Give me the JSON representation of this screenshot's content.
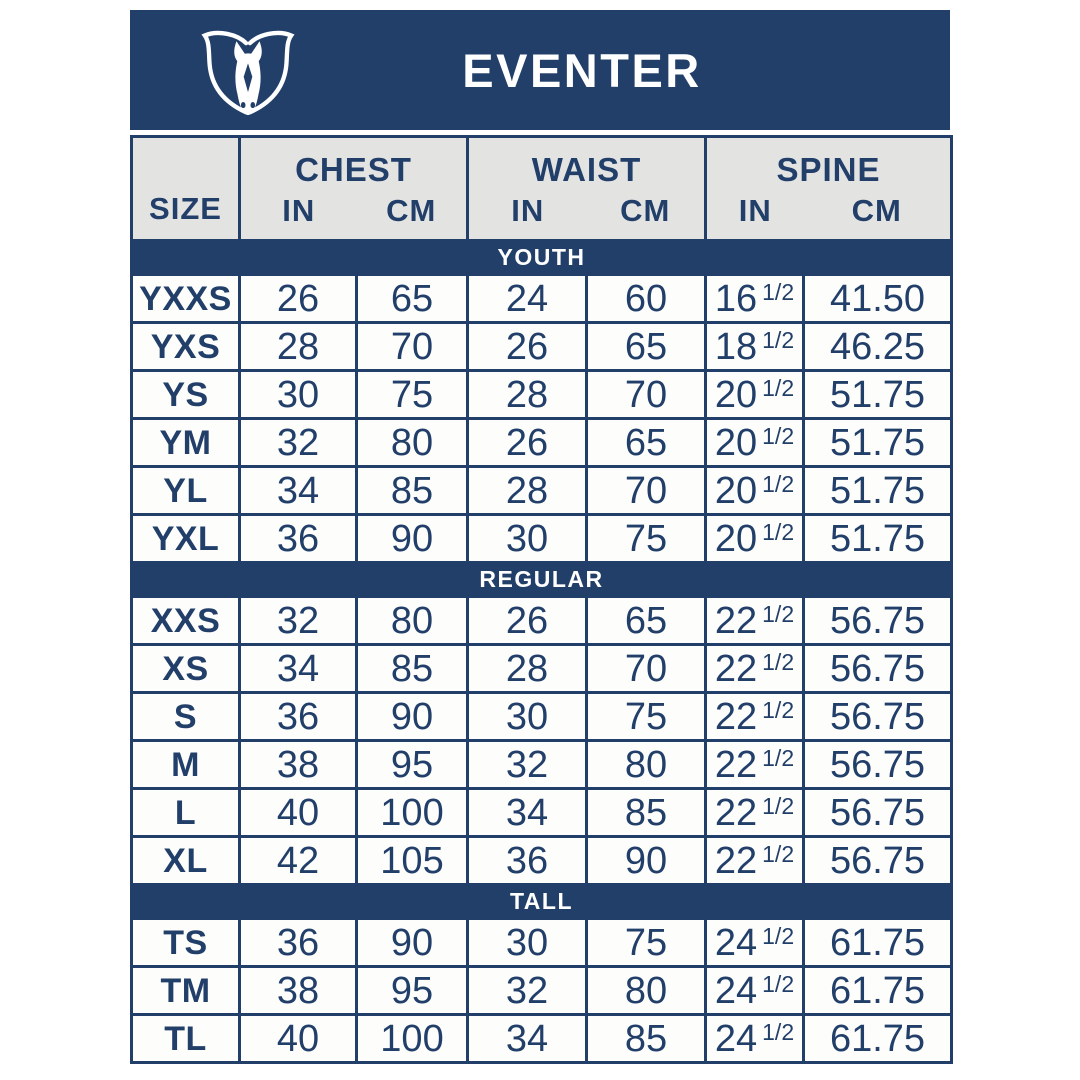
{
  "header": {
    "title": "EVENTER",
    "logo": "shield-horse-head-icon"
  },
  "colors": {
    "navy": "#223f6a",
    "header_bg": "#e3e3e2",
    "cell_bg": "#fdfdfc",
    "band_text": "#ffffff",
    "title_text": "#ffffff"
  },
  "table": {
    "size_label": "SIZE",
    "groups": [
      {
        "label": "CHEST",
        "sub": [
          "IN",
          "CM"
        ]
      },
      {
        "label": "WAIST",
        "sub": [
          "IN",
          "CM"
        ]
      },
      {
        "label": "SPINE",
        "sub": [
          "IN",
          "CM"
        ]
      }
    ],
    "sections": [
      {
        "label": "YOUTH",
        "rows": [
          {
            "size": "YXXS",
            "chest_in": "26",
            "chest_cm": "65",
            "waist_in": "24",
            "waist_cm": "60",
            "spine_in": "16",
            "spine_frac": "1/2",
            "spine_cm": "41.50"
          },
          {
            "size": "YXS",
            "chest_in": "28",
            "chest_cm": "70",
            "waist_in": "26",
            "waist_cm": "65",
            "spine_in": "18",
            "spine_frac": "1/2",
            "spine_cm": "46.25"
          },
          {
            "size": "YS",
            "chest_in": "30",
            "chest_cm": "75",
            "waist_in": "28",
            "waist_cm": "70",
            "spine_in": "20",
            "spine_frac": "1/2",
            "spine_cm": "51.75"
          },
          {
            "size": "YM",
            "chest_in": "32",
            "chest_cm": "80",
            "waist_in": "26",
            "waist_cm": "65",
            "spine_in": "20",
            "spine_frac": "1/2",
            "spine_cm": "51.75"
          },
          {
            "size": "YL",
            "chest_in": "34",
            "chest_cm": "85",
            "waist_in": "28",
            "waist_cm": "70",
            "spine_in": "20",
            "spine_frac": "1/2",
            "spine_cm": "51.75"
          },
          {
            "size": "YXL",
            "chest_in": "36",
            "chest_cm": "90",
            "waist_in": "30",
            "waist_cm": "75",
            "spine_in": "20",
            "spine_frac": "1/2",
            "spine_cm": "51.75"
          }
        ]
      },
      {
        "label": "REGULAR",
        "rows": [
          {
            "size": "XXS",
            "chest_in": "32",
            "chest_cm": "80",
            "waist_in": "26",
            "waist_cm": "65",
            "spine_in": "22",
            "spine_frac": "1/2",
            "spine_cm": "56.75"
          },
          {
            "size": "XS",
            "chest_in": "34",
            "chest_cm": "85",
            "waist_in": "28",
            "waist_cm": "70",
            "spine_in": "22",
            "spine_frac": "1/2",
            "spine_cm": "56.75"
          },
          {
            "size": "S",
            "chest_in": "36",
            "chest_cm": "90",
            "waist_in": "30",
            "waist_cm": "75",
            "spine_in": "22",
            "spine_frac": "1/2",
            "spine_cm": "56.75"
          },
          {
            "size": "M",
            "chest_in": "38",
            "chest_cm": "95",
            "waist_in": "32",
            "waist_cm": "80",
            "spine_in": "22",
            "spine_frac": "1/2",
            "spine_cm": "56.75"
          },
          {
            "size": "L",
            "chest_in": "40",
            "chest_cm": "100",
            "waist_in": "34",
            "waist_cm": "85",
            "spine_in": "22",
            "spine_frac": "1/2",
            "spine_cm": "56.75"
          },
          {
            "size": "XL",
            "chest_in": "42",
            "chest_cm": "105",
            "waist_in": "36",
            "waist_cm": "90",
            "spine_in": "22",
            "spine_frac": "1/2",
            "spine_cm": "56.75"
          }
        ]
      },
      {
        "label": "TALL",
        "rows": [
          {
            "size": "TS",
            "chest_in": "36",
            "chest_cm": "90",
            "waist_in": "30",
            "waist_cm": "75",
            "spine_in": "24",
            "spine_frac": "1/2",
            "spine_cm": "61.75"
          },
          {
            "size": "TM",
            "chest_in": "38",
            "chest_cm": "95",
            "waist_in": "32",
            "waist_cm": "80",
            "spine_in": "24",
            "spine_frac": "1/2",
            "spine_cm": "61.75"
          },
          {
            "size": "TL",
            "chest_in": "40",
            "chest_cm": "100",
            "waist_in": "34",
            "waist_cm": "85",
            "spine_in": "24",
            "spine_frac": "1/2",
            "spine_cm": "61.75"
          }
        ]
      }
    ]
  }
}
